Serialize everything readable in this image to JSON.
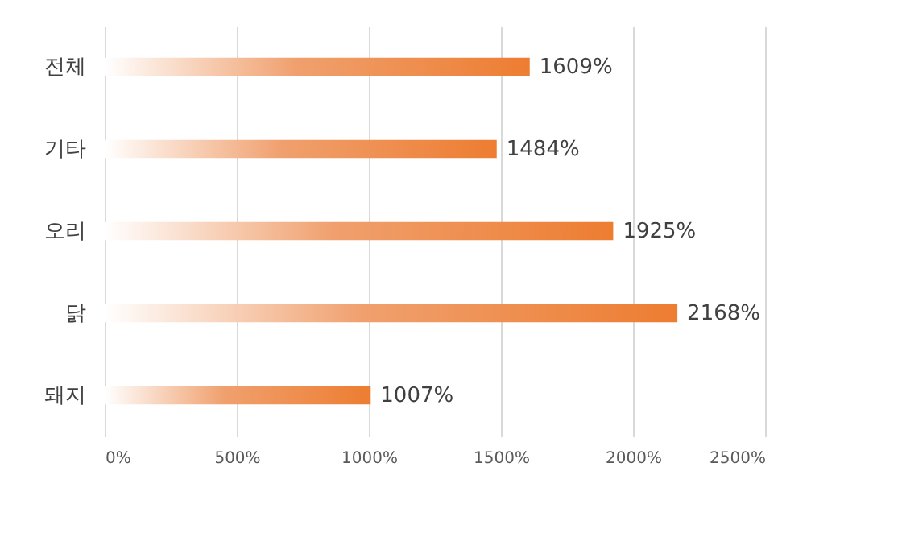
{
  "chart_data": {
    "type": "bar",
    "orientation": "horizontal",
    "categories": [
      "전체",
      "기타",
      "오리",
      "닭",
      "돼지"
    ],
    "values": [
      1609,
      1484,
      1925,
      2168,
      1007
    ],
    "value_labels": [
      "1609%",
      "1484%",
      "1925%",
      "2168%",
      "1007%"
    ],
    "color": "#ed7d31",
    "xlim": [
      0,
      2500
    ],
    "xticks": [
      {
        "value": 0,
        "label": "0%"
      },
      {
        "value": 500,
        "label": "500%"
      },
      {
        "value": 1000,
        "label": "1000%"
      },
      {
        "value": 1500,
        "label": "1500%"
      },
      {
        "value": 2000,
        "label": "2000%"
      },
      {
        "value": 2500,
        "label": "2500%"
      }
    ],
    "grid": "x"
  }
}
